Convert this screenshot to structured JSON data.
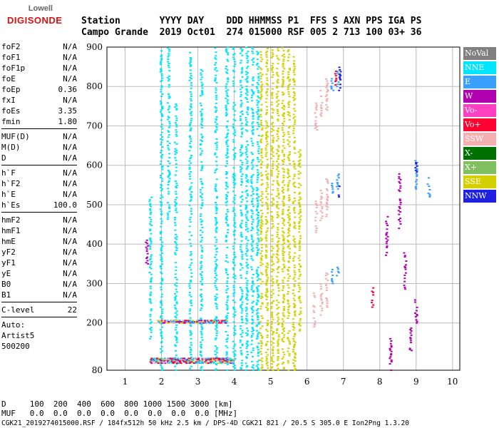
{
  "logo": {
    "line1": "Lowell",
    "line2": "DIGISONDE"
  },
  "header": {
    "labels": "Station       YYYY DAY    DDD HHMMSS P1  FFS S AXN PPS IGA PS",
    "values": "Campo Grande  2019 Oct01  274 015000 RSF 005 2 713 100 03+ 36"
  },
  "params": {
    "g1": [
      [
        "foF2",
        "N/A"
      ],
      [
        "foF1",
        "N/A"
      ],
      [
        "foF1p",
        "N/A"
      ],
      [
        "foE",
        "N/A"
      ],
      [
        "foEp",
        "0.36"
      ],
      [
        "fxI",
        "N/A"
      ],
      [
        "foEs",
        "3.35"
      ],
      [
        "fmin",
        "1.80"
      ]
    ],
    "g2": [
      [
        "MUF(D)",
        "N/A"
      ],
      [
        "M(D)",
        "N/A"
      ],
      [
        "D",
        "N/A"
      ]
    ],
    "g3": [
      [
        "h`F",
        "N/A"
      ],
      [
        "h`F2",
        "N/A"
      ],
      [
        "h`E",
        "N/A"
      ],
      [
        "h`Es",
        "100.0"
      ]
    ],
    "g4": [
      [
        "hmF2",
        "N/A"
      ],
      [
        "hmF1",
        "N/A"
      ],
      [
        "hmE",
        "N/A"
      ],
      [
        "yF2",
        "N/A"
      ],
      [
        "yF1",
        "N/A"
      ],
      [
        "yE",
        "N/A"
      ],
      [
        "B0",
        "N/A"
      ],
      [
        "B1",
        "N/A"
      ]
    ],
    "g5": [
      [
        "C-level",
        "22"
      ]
    ],
    "auto": [
      "Auto:",
      "Artist5",
      "500200"
    ]
  },
  "legend": [
    {
      "label": "NoVal",
      "color": "#808080"
    },
    {
      "label": "NNE",
      "color": "#00e5ff"
    },
    {
      "label": "E",
      "color": "#3aa0ff"
    },
    {
      "label": "W",
      "color": "#b000b0"
    },
    {
      "label": "Vo-",
      "color": "#ff40c0"
    },
    {
      "label": "Vo+",
      "color": "#ff0030"
    },
    {
      "label": "SSW",
      "color": "#f4b0b0"
    },
    {
      "label": "X-",
      "color": "#007000"
    },
    {
      "label": "X+",
      "color": "#80c060"
    },
    {
      "label": "SSE",
      "color": "#d4d000"
    },
    {
      "label": "NNW",
      "color": "#2020e0"
    }
  ],
  "chart_data": {
    "type": "scatter",
    "xlabel": "",
    "ylabel": "",
    "xlim": [
      0.5,
      10.2
    ],
    "ylim": [
      80,
      900
    ],
    "xticks": [
      1,
      2,
      3,
      4,
      5,
      6,
      7,
      8,
      9,
      10
    ],
    "yticks": [
      80,
      200,
      300,
      400,
      500,
      600,
      700,
      800,
      900
    ],
    "grid": true,
    "series": [
      {
        "name": "NNE",
        "color": "#00e5ff",
        "traces": [
          [
            1.7,
            160,
            520
          ],
          [
            2.0,
            80,
            900
          ],
          [
            2.2,
            450,
            900
          ],
          [
            2.4,
            80,
            760
          ],
          [
            2.8,
            80,
            900
          ],
          [
            3.1,
            80,
            850
          ],
          [
            3.5,
            80,
            900
          ],
          [
            3.8,
            80,
            900
          ],
          [
            4.0,
            80,
            900
          ],
          [
            4.2,
            80,
            900
          ],
          [
            4.35,
            80,
            900
          ],
          [
            4.5,
            80,
            900
          ],
          [
            4.65,
            80,
            900
          ]
        ]
      },
      {
        "name": "SSE",
        "color": "#d4d000",
        "traces": [
          [
            4.75,
            80,
            900
          ],
          [
            4.9,
            80,
            900
          ],
          [
            5.05,
            80,
            900
          ],
          [
            5.2,
            80,
            900
          ],
          [
            5.35,
            80,
            900
          ],
          [
            5.5,
            80,
            900
          ],
          [
            5.65,
            80,
            880
          ],
          [
            5.8,
            180,
            640
          ]
        ]
      },
      {
        "name": "SSW",
        "color": "#f4b0b0",
        "traces": [
          [
            6.2,
            190,
            280
          ],
          [
            6.25,
            430,
            510
          ],
          [
            6.25,
            690,
            760
          ],
          [
            6.4,
            220,
            300
          ],
          [
            6.4,
            460,
            540
          ],
          [
            6.4,
            720,
            790
          ],
          [
            6.55,
            240,
            330
          ],
          [
            6.55,
            470,
            570
          ],
          [
            6.55,
            740,
            820
          ]
        ]
      },
      {
        "name": "E",
        "color": "#3aa0ff",
        "traces": [
          [
            6.7,
            300,
            340
          ],
          [
            6.7,
            530,
            560
          ],
          [
            6.7,
            790,
            830
          ],
          [
            6.85,
            320,
            350
          ],
          [
            6.85,
            540,
            580
          ],
          [
            6.85,
            800,
            840
          ],
          [
            9.0,
            540,
            620
          ],
          [
            9.35,
            520,
            570
          ]
        ]
      },
      {
        "name": "W",
        "color": "#b000b0",
        "traces": [
          [
            1.6,
            350,
            420
          ],
          [
            8.2,
            360,
            470
          ],
          [
            8.3,
            80,
            160
          ],
          [
            8.55,
            440,
            580
          ],
          [
            8.7,
            280,
            380
          ],
          [
            8.85,
            130,
            190
          ],
          [
            9.0,
            200,
            260
          ]
        ]
      },
      {
        "name": "Vo+",
        "color": "#ff0030",
        "traces": [
          [
            7.8,
            240,
            290
          ],
          [
            6.8,
            800,
            840
          ]
        ]
      },
      {
        "name": "NNW",
        "color": "#2020e0",
        "traces": [
          [
            6.9,
            790,
            850
          ],
          [
            6.9,
            520,
            560
          ],
          [
            9.0,
            580,
            610
          ]
        ]
      }
    ],
    "bands": [
      {
        "name": "Es-trace",
        "color": "#d4d000",
        "x": [
          1.7,
          4.0
        ],
        "h": [
          98,
          112
        ]
      },
      {
        "name": "Es-2hop",
        "color": "#d4d000",
        "x": [
          1.9,
          3.8
        ],
        "h": [
          200,
          206
        ]
      }
    ]
  },
  "footer": {
    "d_row": "D     100  200  400  600  800 1000 1500 3000 [km]",
    "muf_row": "MUF   0.0  0.0  0.0  0.0  0.0  0.0  0.0  0.0 [MHz]",
    "info": "CGK21_2019274015000.RSF / 184fx512h 50 kHz 2.5 km / DPS-4D CGK21 821 / 20.5 S 305.0 E Ion2Png 1.3.20"
  }
}
